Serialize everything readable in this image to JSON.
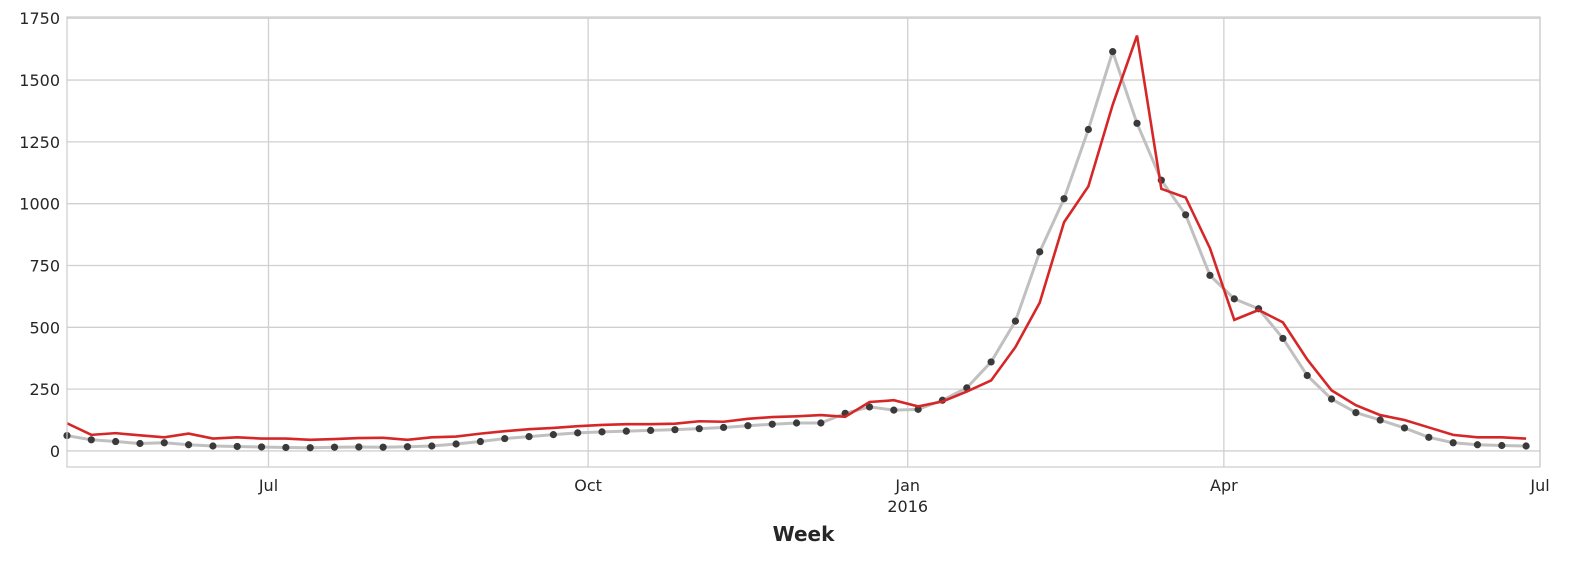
{
  "chart_data": {
    "type": "line",
    "xlabel": "Week",
    "ylabel": "",
    "xlim": [
      "2015-05-04",
      "2016-07-01"
    ],
    "ylim": [
      -65,
      1755
    ],
    "grid": true,
    "x_ticks": [
      {
        "date": "2015-07-01",
        "label": "Jul",
        "sublabel": ""
      },
      {
        "date": "2015-10-01",
        "label": "Oct",
        "sublabel": ""
      },
      {
        "date": "2016-01-01",
        "label": "Jan",
        "sublabel": "2016"
      },
      {
        "date": "2016-04-01",
        "label": "Apr",
        "sublabel": ""
      },
      {
        "date": "2016-07-01",
        "label": "Jul",
        "sublabel": ""
      }
    ],
    "y_ticks": [
      0,
      250,
      500,
      750,
      1000,
      1250,
      1500,
      1750
    ],
    "colors": {
      "observed_line": "#c0c0c0",
      "observed_points": "#3a3a3a",
      "fitted_line": "#d62728",
      "grid": "#d0d0d0",
      "frame": "#cccccc"
    },
    "x": [
      "2015-05-04",
      "2015-05-11",
      "2015-05-18",
      "2015-05-25",
      "2015-06-01",
      "2015-06-08",
      "2015-06-15",
      "2015-06-22",
      "2015-06-29",
      "2015-07-06",
      "2015-07-13",
      "2015-07-20",
      "2015-07-27",
      "2015-08-03",
      "2015-08-10",
      "2015-08-17",
      "2015-08-24",
      "2015-08-31",
      "2015-09-07",
      "2015-09-14",
      "2015-09-21",
      "2015-09-28",
      "2015-10-05",
      "2015-10-12",
      "2015-10-19",
      "2015-10-26",
      "2015-11-02",
      "2015-11-09",
      "2015-11-16",
      "2015-11-23",
      "2015-11-30",
      "2015-12-07",
      "2015-12-14",
      "2015-12-21",
      "2015-12-28",
      "2016-01-04",
      "2016-01-11",
      "2016-01-18",
      "2016-01-25",
      "2016-02-01",
      "2016-02-08",
      "2016-02-15",
      "2016-02-22",
      "2016-02-29",
      "2016-03-07",
      "2016-03-14",
      "2016-03-21",
      "2016-03-28",
      "2016-04-04",
      "2016-04-11",
      "2016-04-18",
      "2016-04-25",
      "2016-05-02",
      "2016-05-09",
      "2016-05-16",
      "2016-05-23",
      "2016-05-30",
      "2016-06-06",
      "2016-06-13",
      "2016-06-20",
      "2016-06-27"
    ],
    "series": [
      {
        "values": [
          62,
          45,
          38,
          30,
          33,
          25,
          20,
          18,
          16,
          14,
          13,
          15,
          16,
          15,
          17,
          20,
          28,
          38,
          50,
          58,
          66,
          73,
          77,
          80,
          83,
          86,
          90,
          95,
          102,
          108,
          113,
          113,
          152,
          178,
          165,
          168,
          205,
          255,
          360,
          525,
          805,
          1020,
          1300,
          1615,
          1325,
          1095,
          955,
          710,
          615,
          575,
          455,
          305,
          210,
          155,
          125,
          93,
          55,
          33,
          25,
          22,
          20
        ]
      },
      {
        "values": [
          112,
          65,
          72,
          63,
          55,
          70,
          50,
          55,
          50,
          50,
          45,
          48,
          52,
          53,
          45,
          55,
          58,
          70,
          80,
          88,
          93,
          100,
          105,
          108,
          108,
          110,
          120,
          118,
          130,
          137,
          140,
          145,
          138,
          198,
          205,
          180,
          200,
          240,
          285,
          420,
          600,
          925,
          1070,
          1400,
          1680,
          1060,
          1025,
          820,
          530,
          570,
          520,
          370,
          245,
          185,
          145,
          125,
          95,
          65,
          55,
          55,
          50
        ]
      }
    ]
  }
}
